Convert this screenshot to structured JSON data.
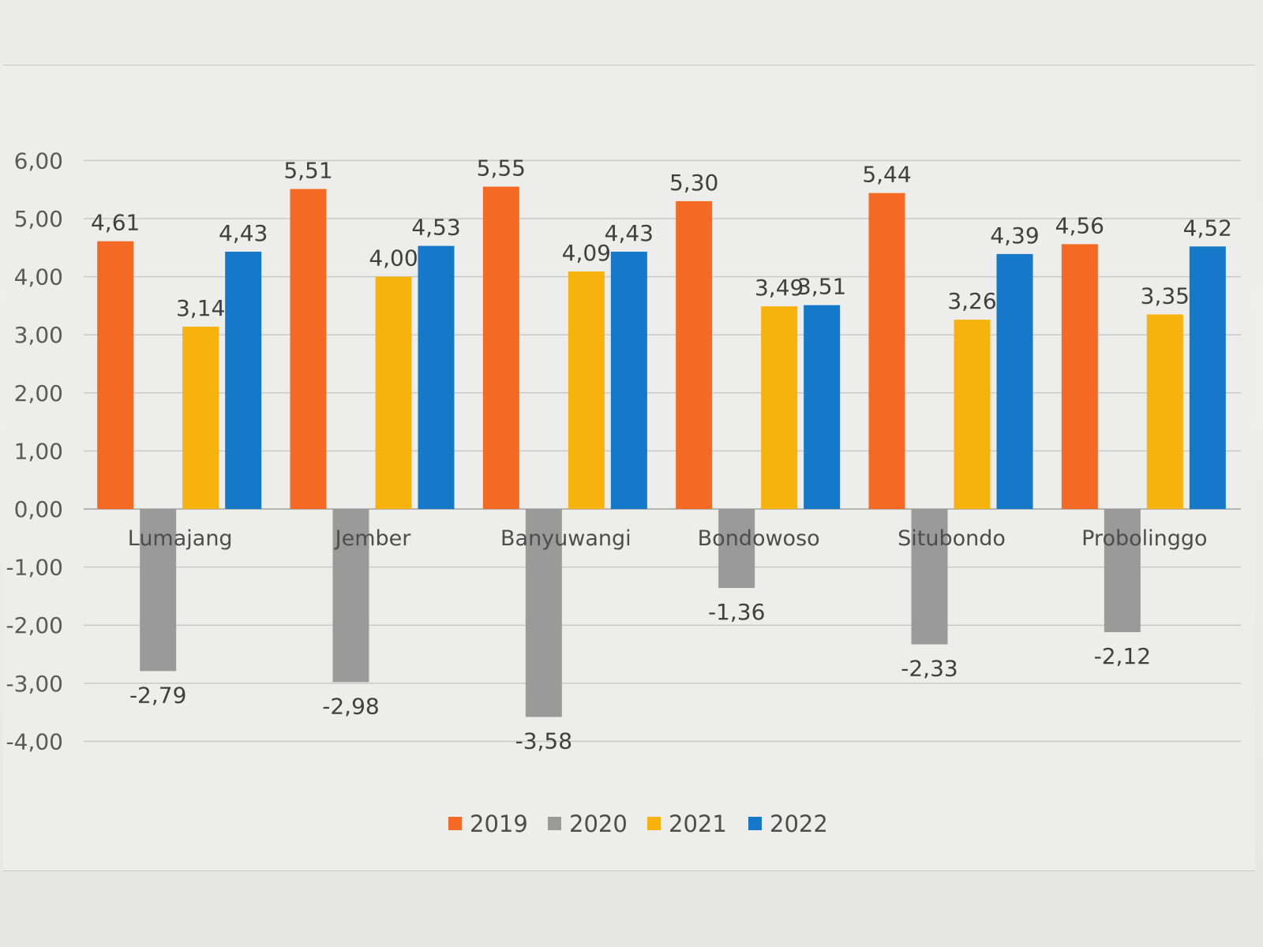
{
  "chart_data": {
    "type": "bar",
    "title": "",
    "xlabel": "",
    "ylabel": "",
    "ylim": [
      -4,
      6
    ],
    "yticks": [
      6,
      5,
      4,
      3,
      2,
      1,
      0,
      -1,
      -2,
      -3,
      -4
    ],
    "ytick_labels": [
      "6,00",
      "5,00",
      "4,00",
      "3,00",
      "2,00",
      "1,00",
      "0,00",
      "-1,00",
      "-2,00",
      "-3,00",
      "-4,00"
    ],
    "grid": true,
    "legend_position": "bottom",
    "categories": [
      "Lumajang",
      "Jember",
      "Banyuwangi",
      "Bondowoso",
      "Situbondo",
      "Probolinggo"
    ],
    "series": [
      {
        "name": "2019",
        "color": "#f46a25",
        "values": [
          4.61,
          5.51,
          5.55,
          5.3,
          5.44,
          4.56
        ],
        "labels": [
          "4,61",
          "5,51",
          "5,55",
          "5,30",
          "5,44",
          "4,56"
        ]
      },
      {
        "name": "2020",
        "color": "#9a9a9a",
        "values": [
          -2.79,
          -2.98,
          -3.58,
          -1.36,
          -2.33,
          -2.12
        ],
        "labels": [
          "-2,79",
          "-2,98",
          "-3,58",
          "-1,36",
          "-2,33",
          "-2,12"
        ]
      },
      {
        "name": "2021",
        "color": "#f7b20e",
        "values": [
          3.14,
          4.0,
          4.09,
          3.49,
          3.26,
          3.35
        ],
        "labels": [
          "3,14",
          "4,00",
          "4,09",
          "3,49",
          "3,26",
          "3,35"
        ]
      },
      {
        "name": "2022",
        "color": "#1578c8",
        "values": [
          4.43,
          4.53,
          4.43,
          3.51,
          4.39,
          4.52
        ],
        "labels": [
          "4,43",
          "4,53",
          "4,43",
          "3,51",
          "4,39",
          "4,52"
        ]
      }
    ]
  }
}
